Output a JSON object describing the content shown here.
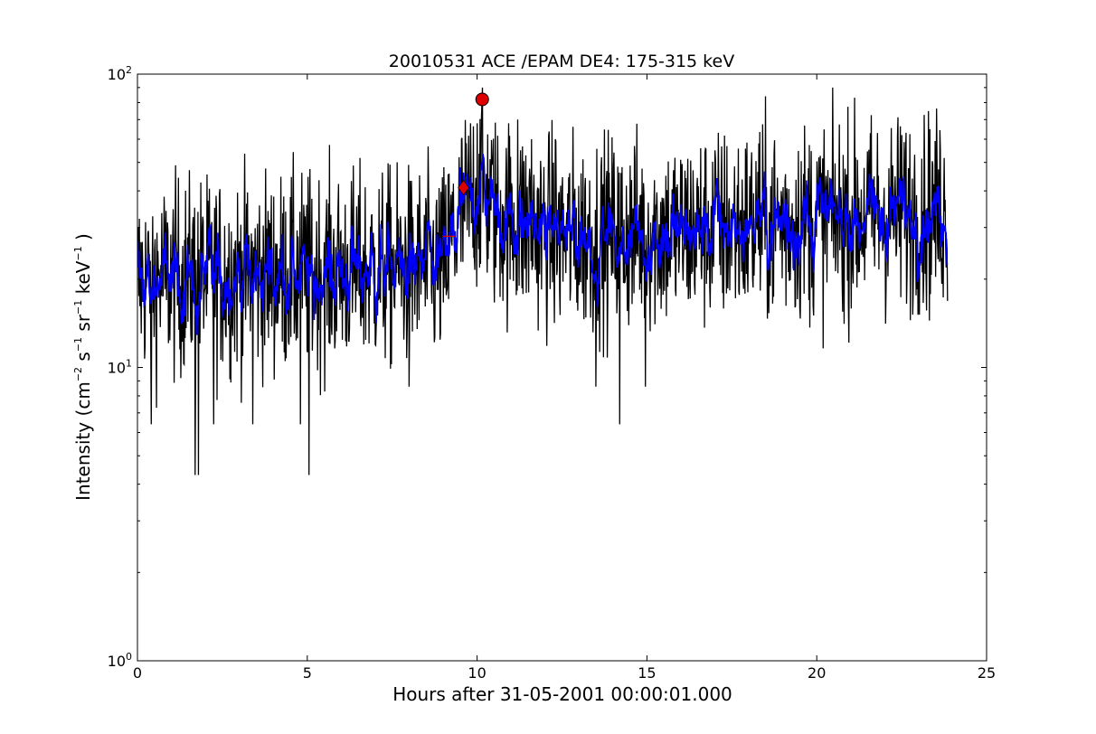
{
  "chart_data": {
    "type": "line",
    "title": "20010531 ACE /EPAM DE4: 175-315 keV",
    "xlabel": "Hours after 31-05-2001 00:00:01.000",
    "ylabel": {
      "prefix": "Intensity (cm",
      "sup1": "−2",
      "mid1": " s",
      "sup2": "−1",
      "mid2": " sr",
      "sup3": "−1",
      "mid3": " keV",
      "sup4": "−1",
      "suffix": " )"
    },
    "xlim": [
      0,
      25
    ],
    "ylim": [
      1,
      100
    ],
    "yscale": "log",
    "x_ticks": [
      0,
      5,
      10,
      15,
      20,
      25
    ],
    "x_tick_labels": [
      "0",
      "5",
      "10",
      "15",
      "20",
      "25"
    ],
    "y_ticks": [
      {
        "value": 1,
        "base": "10",
        "exp": "0"
      },
      {
        "value": 10,
        "base": "10",
        "exp": "1"
      },
      {
        "value": 100,
        "base": "10",
        "exp": "2"
      }
    ],
    "grid": false,
    "series": [
      {
        "role": "raw",
        "color": "#000000",
        "x_start": 0.0,
        "x_end": 23.85,
        "baseline": [
          [
            0,
            20
          ],
          [
            9.0,
            22
          ],
          [
            9.5,
            32
          ],
          [
            10.1,
            42
          ],
          [
            10.6,
            33
          ],
          [
            12.5,
            28
          ],
          [
            16,
            29
          ],
          [
            20,
            32
          ],
          [
            23.85,
            34
          ]
        ],
        "spikes": [
          {
            "x": 1.7,
            "y": 4.3
          },
          {
            "x": 1.8,
            "y": 4.3
          },
          {
            "x": 5.05,
            "y": 4.3
          },
          {
            "x": 0.4,
            "y": 6.4
          },
          {
            "x": 2.25,
            "y": 6.4
          },
          {
            "x": 3.4,
            "y": 6.4
          },
          {
            "x": 4.8,
            "y": 6.4
          },
          {
            "x": 14.2,
            "y": 6.4
          },
          {
            "x": 8.0,
            "y": 8.6
          },
          {
            "x": 13.5,
            "y": 8.6
          },
          {
            "x": 14.95,
            "y": 8.6
          },
          {
            "x": 10.15,
            "y": 80
          },
          {
            "x": 10.0,
            "y": 68
          },
          {
            "x": 11.2,
            "y": 70
          },
          {
            "x": 11.6,
            "y": 60
          },
          {
            "x": 18.3,
            "y": 58
          },
          {
            "x": 17.0,
            "y": 55
          },
          {
            "x": 22.5,
            "y": 62
          },
          {
            "x": 12.3,
            "y": 60
          }
        ]
      },
      {
        "role": "smoothed",
        "color": "#0000ff",
        "x_start": 0.0,
        "x_end": 23.85
      }
    ],
    "markers": [
      {
        "shape": "circle",
        "x": 10.15,
        "y": 82,
        "color": "#dd0000"
      },
      {
        "shape": "diamond",
        "x": 9.6,
        "y": 41,
        "color": "#dd0000"
      },
      {
        "shape": "hline",
        "x0": 9.0,
        "x1": 9.35,
        "y": 28,
        "color": "#dd0000"
      }
    ]
  }
}
